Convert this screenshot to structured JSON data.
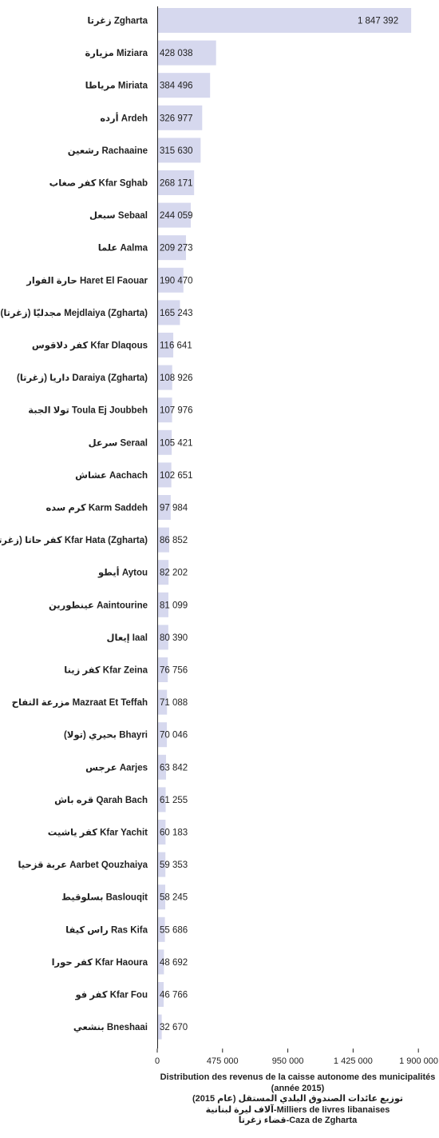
{
  "chart_data": {
    "type": "bar",
    "orientation": "horizontal",
    "categories": [
      "زغرتا Zgharta",
      "مزيارة Miziara",
      "مرياطا Miriata",
      "أرده Ardeh",
      "رشعين Rachaaine",
      "كفر صغاب Kfar Sghab",
      "سبعل Sebaal",
      "علما Aalma",
      "حارة الفوار Haret El Faouar",
      "مجدليّا (زغرتا) Mejdlaiya (Zgharta)",
      "كفر دلاقوس Kfar Dlaqous",
      "داريا (زغرتا) Daraiya (Zgharta)",
      "تولا الجبة Toula Ej Joubbeh",
      "سرعل Seraal",
      "عشاش Aachach",
      "كرم سده Karm Saddeh",
      "كفر حاتا (زغرتا) Kfar Hata (Zgharta)",
      "أيطو Aytou",
      "عينطورين Aaintourine",
      "إيعال Iaal",
      "كفر زينا Kfar Zeina",
      "مزرعة التفاح Mazraat Et Teffah",
      "بحيري (تولا) Bhayri",
      "عرجس Aarjes",
      "قره باش Qarah Bach",
      "كفر ياشيت Kfar Yachit",
      "عربة قزحيا Aarbet Qouzhaiya",
      "بسلوقيط Baslouqit",
      "راس كيفا Ras Kifa",
      "كفر حورا Kfar Haoura",
      "كفر فو Kfar Fou",
      "بنشعي Bneshaai"
    ],
    "values": [
      1847392,
      428038,
      384496,
      326977,
      315630,
      268171,
      244059,
      209273,
      190470,
      165243,
      116641,
      108926,
      107976,
      105421,
      102651,
      97984,
      86852,
      82202,
      81099,
      80390,
      76756,
      71088,
      70046,
      63842,
      61255,
      60183,
      59353,
      58245,
      55686,
      48692,
      46766,
      32670
    ],
    "value_labels": [
      "1 847 392",
      "428 038",
      "384 496",
      "326 977",
      "315 630",
      "268 171",
      "244 059",
      "209 273",
      "190 470",
      "165 243",
      "116 641",
      "108 926",
      "107 976",
      "105 421",
      "102 651",
      "97 984",
      "86 852",
      "82 202",
      "81 099",
      "80 390",
      "76 756",
      "71 088",
      "70 046",
      "63 842",
      "61 255",
      "60 183",
      "59 353",
      "58 245",
      "55 686",
      "48 692",
      "46 766",
      "32 670"
    ],
    "xlim": [
      0,
      2050000
    ],
    "xticks": [
      0,
      475000,
      950000,
      1425000,
      1900000
    ],
    "xtick_labels": [
      "0",
      "475 000",
      "950 000",
      "1 425 000",
      "1 900 000"
    ],
    "grid": false,
    "bar_color": "#d6d8ee",
    "caption": [
      "Distribution des revenus de la caisse autonome des municipalités (année 2015)",
      "توزيع عائدات الصندوق البلدي المستقل (عام 2015)",
      "آلاف ليرة لبنانية-Milliers de livres libanaises",
      "قضاء زغرتا-Caza de Zgharta"
    ]
  }
}
